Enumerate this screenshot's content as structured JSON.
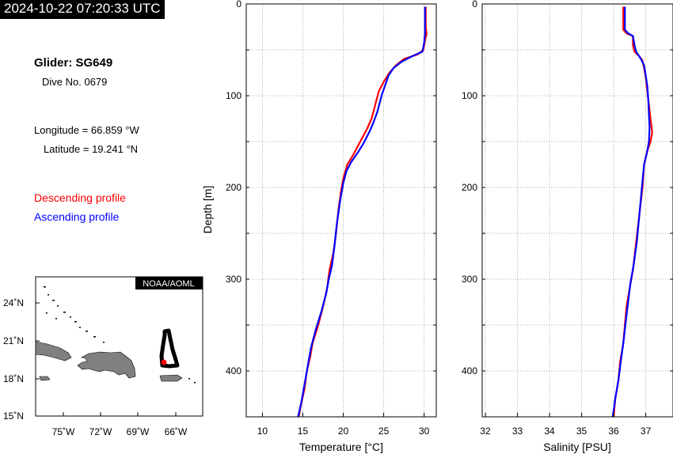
{
  "header": {
    "timestamp": "2024-10-22 07:20:33 UTC"
  },
  "info": {
    "glider": "Glider: SG649",
    "dive": "Dive No. 0679",
    "longitude": "Longitude = 66.859 °W",
    "latitude": "Latitude = 19.241 °N"
  },
  "legend": {
    "descending": "Descending profile",
    "ascending": "Ascending profile"
  },
  "colors": {
    "descending": "#ff0000",
    "ascending": "#0000ff",
    "land": "#808080",
    "track": "#000000"
  },
  "map": {
    "badge": "NOAA/AOML",
    "lat_ticks": [
      "24˚N",
      "21˚N",
      "18˚N",
      "15˚N"
    ],
    "lon_ticks": [
      "75˚W",
      "72˚W",
      "69˚W",
      "66˚W"
    ]
  },
  "chart_data": [
    {
      "type": "line",
      "xlabel": "Temperature [°C]",
      "ylabel": "Depth [m]",
      "xlim": [
        8,
        31.5
      ],
      "ylim": [
        0,
        450
      ],
      "y_inverted": true,
      "grid": true,
      "xticks": [
        "10",
        "15",
        "20",
        "25",
        "30"
      ],
      "yticks": [
        "0",
        "100",
        "200",
        "300",
        "400"
      ],
      "series": [
        {
          "name": "Descending profile",
          "color": "#ff0000",
          "points": [
            [
              30.2,
              3
            ],
            [
              30.2,
              15
            ],
            [
              30.2,
              25
            ],
            [
              30.3,
              33
            ],
            [
              30.1,
              40
            ],
            [
              29.9,
              50
            ],
            [
              29.2,
              55
            ],
            [
              27.5,
              60
            ],
            [
              26.5,
              67
            ],
            [
              25.7,
              75
            ],
            [
              25,
              85
            ],
            [
              24.4,
              95
            ],
            [
              24.1,
              105
            ],
            [
              23.8,
              115
            ],
            [
              23.5,
              125
            ],
            [
              23,
              135
            ],
            [
              22.4,
              145
            ],
            [
              21.8,
              155
            ],
            [
              21.2,
              165
            ],
            [
              20.5,
              175
            ],
            [
              20,
              190
            ],
            [
              19.7,
              205
            ],
            [
              19.4,
              225
            ],
            [
              19.1,
              250
            ],
            [
              18.8,
              270
            ],
            [
              18.3,
              290
            ],
            [
              18,
              310
            ],
            [
              17.5,
              330
            ],
            [
              16.9,
              350
            ],
            [
              16.2,
              370
            ],
            [
              15.9,
              385
            ],
            [
              15.5,
              400
            ],
            [
              15.2,
              420
            ],
            [
              14.7,
              440
            ],
            [
              14.5,
              450
            ]
          ]
        },
        {
          "name": "Ascending profile",
          "color": "#0000ff",
          "points": [
            [
              30.1,
              3
            ],
            [
              30.1,
              15
            ],
            [
              30.1,
              25
            ],
            [
              30.1,
              33
            ],
            [
              30,
              42
            ],
            [
              29.8,
              52
            ],
            [
              28.5,
              57
            ],
            [
              27.2,
              63
            ],
            [
              26.2,
              70
            ],
            [
              25.6,
              78
            ],
            [
              25.2,
              88
            ],
            [
              24.8,
              98
            ],
            [
              24.5,
              108
            ],
            [
              24.2,
              118
            ],
            [
              23.7,
              130
            ],
            [
              23.2,
              140
            ],
            [
              22.5,
              152
            ],
            [
              21.8,
              162
            ],
            [
              21,
              172
            ],
            [
              20.4,
              182
            ],
            [
              20,
              195
            ],
            [
              19.6,
              215
            ],
            [
              19.2,
              240
            ],
            [
              18.9,
              265
            ],
            [
              18.6,
              285
            ],
            [
              18.2,
              300
            ],
            [
              17.9,
              315
            ],
            [
              17.3,
              335
            ],
            [
              16.6,
              355
            ],
            [
              16,
              375
            ],
            [
              15.7,
              390
            ],
            [
              15.4,
              405
            ],
            [
              15.1,
              420
            ],
            [
              14.8,
              435
            ],
            [
              14.4,
              450
            ]
          ]
        }
      ]
    },
    {
      "type": "line",
      "xlabel": "Salinity [PSU]",
      "ylabel": "",
      "xlim": [
        31.9,
        37.85
      ],
      "ylim": [
        0,
        450
      ],
      "y_inverted": true,
      "grid": true,
      "xticks": [
        "32",
        "33",
        "34",
        "35",
        "36",
        "37"
      ],
      "yticks": [
        "0",
        "100",
        "200",
        "300",
        "400"
      ],
      "series": [
        {
          "name": "Descending profile",
          "color": "#ff0000",
          "points": [
            [
              36.3,
              3
            ],
            [
              36.3,
              15
            ],
            [
              36.3,
              28
            ],
            [
              36.4,
              32
            ],
            [
              36.6,
              35
            ],
            [
              36.6,
              45
            ],
            [
              36.65,
              52
            ],
            [
              36.8,
              57
            ],
            [
              36.9,
              62
            ],
            [
              36.95,
              70
            ],
            [
              37,
              80
            ],
            [
              37.05,
              95
            ],
            [
              37.1,
              110
            ],
            [
              37.15,
              125
            ],
            [
              37.2,
              140
            ],
            [
              37.15,
              150
            ],
            [
              37.05,
              160
            ],
            [
              36.95,
              175
            ],
            [
              36.9,
              200
            ],
            [
              36.8,
              230
            ],
            [
              36.7,
              260
            ],
            [
              36.6,
              290
            ],
            [
              36.5,
              310
            ],
            [
              36.4,
              330
            ],
            [
              36.35,
              350
            ],
            [
              36.3,
              370
            ],
            [
              36.2,
              390
            ],
            [
              36.15,
              410
            ],
            [
              36.05,
              430
            ],
            [
              36,
              450
            ]
          ]
        },
        {
          "name": "Ascending profile",
          "color": "#0000ff",
          "points": [
            [
              36.35,
              3
            ],
            [
              36.35,
              15
            ],
            [
              36.35,
              28
            ],
            [
              36.45,
              32
            ],
            [
              36.6,
              35
            ],
            [
              36.65,
              45
            ],
            [
              36.7,
              52
            ],
            [
              36.85,
              60
            ],
            [
              36.95,
              67
            ],
            [
              37,
              78
            ],
            [
              37.05,
              90
            ],
            [
              37.08,
              105
            ],
            [
              37.1,
              120
            ],
            [
              37.12,
              135
            ],
            [
              37.1,
              150
            ],
            [
              37.05,
              160
            ],
            [
              36.95,
              175
            ],
            [
              36.88,
              200
            ],
            [
              36.8,
              230
            ],
            [
              36.72,
              260
            ],
            [
              36.62,
              285
            ],
            [
              36.52,
              305
            ],
            [
              36.45,
              325
            ],
            [
              36.38,
              345
            ],
            [
              36.3,
              370
            ],
            [
              36.22,
              390
            ],
            [
              36.15,
              410
            ],
            [
              36.05,
              430
            ],
            [
              35.97,
              450
            ]
          ]
        }
      ]
    }
  ]
}
